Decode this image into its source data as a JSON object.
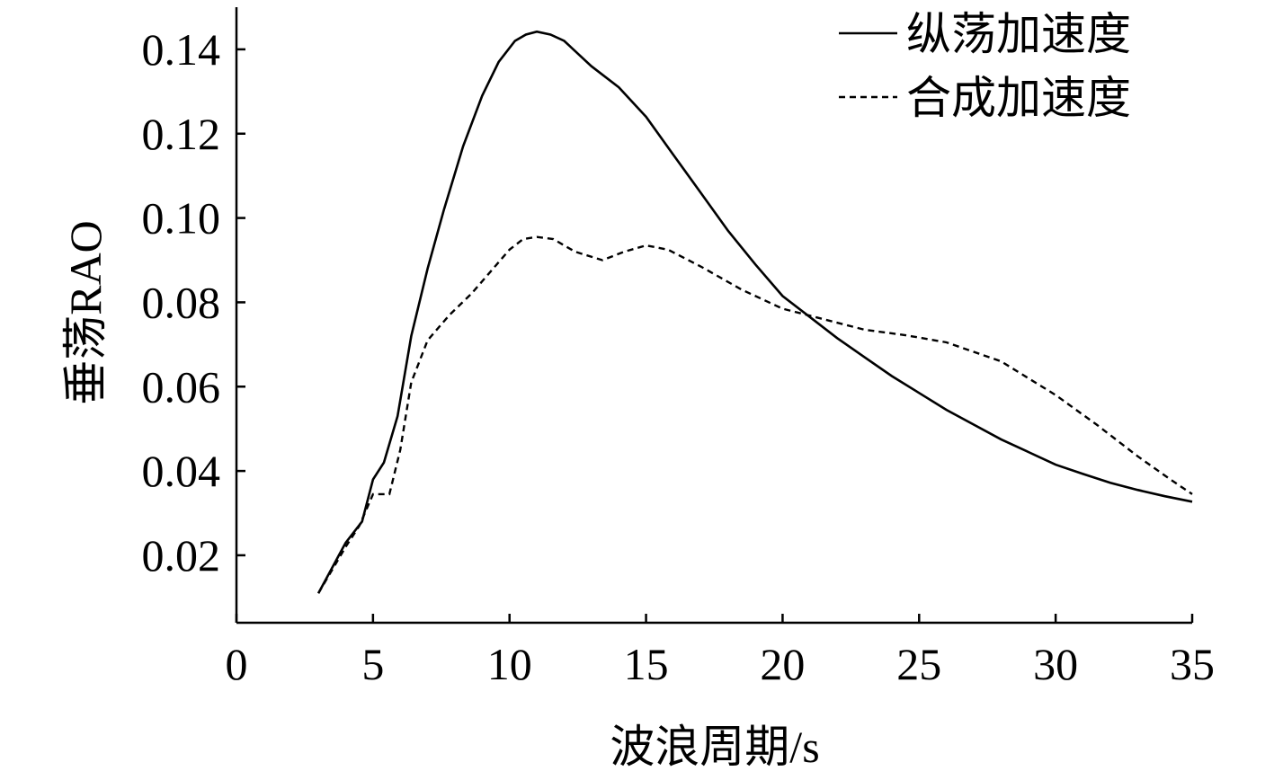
{
  "chart_data": {
    "type": "line",
    "xlabel": "波浪周期/s",
    "ylabel": "垂荡RAO",
    "xlim": [
      0,
      35
    ],
    "ylim": [
      0.004,
      0.15
    ],
    "x_ticks": [
      "0",
      "5",
      "10",
      "15",
      "20",
      "25",
      "30",
      "35"
    ],
    "y_ticks": [
      "0.02",
      "0.04",
      "0.06",
      "0.08",
      "0.10",
      "0.12",
      "0.14"
    ],
    "legend_position": "top-right",
    "series": [
      {
        "name": "纵荡加速度",
        "style": "solid",
        "color": "#000000",
        "points": [
          [
            3.0,
            0.011
          ],
          [
            4.0,
            0.023
          ],
          [
            4.6,
            0.028
          ],
          [
            5.0,
            0.038
          ],
          [
            5.4,
            0.042
          ],
          [
            5.9,
            0.053
          ],
          [
            6.4,
            0.072
          ],
          [
            7.0,
            0.088
          ],
          [
            7.6,
            0.102
          ],
          [
            8.3,
            0.117
          ],
          [
            9.0,
            0.129
          ],
          [
            9.6,
            0.137
          ],
          [
            10.2,
            0.142
          ],
          [
            10.6,
            0.1435
          ],
          [
            11.0,
            0.1442
          ],
          [
            11.5,
            0.1435
          ],
          [
            12.0,
            0.142
          ],
          [
            13.0,
            0.136
          ],
          [
            14.0,
            0.131
          ],
          [
            15.0,
            0.124
          ],
          [
            16.0,
            0.115
          ],
          [
            17.0,
            0.106
          ],
          [
            18.0,
            0.097
          ],
          [
            19.0,
            0.089
          ],
          [
            20.0,
            0.0815
          ],
          [
            21.0,
            0.0765
          ],
          [
            22.0,
            0.0715
          ],
          [
            23.0,
            0.067
          ],
          [
            24.0,
            0.0625
          ],
          [
            25.0,
            0.0585
          ],
          [
            26.0,
            0.0545
          ],
          [
            27.0,
            0.051
          ],
          [
            28.0,
            0.0475
          ],
          [
            29.0,
            0.0445
          ],
          [
            30.0,
            0.0415
          ],
          [
            31.0,
            0.0393
          ],
          [
            32.0,
            0.0372
          ],
          [
            33.0,
            0.0355
          ],
          [
            34.0,
            0.034
          ],
          [
            35.0,
            0.0327
          ]
        ]
      },
      {
        "name": "合成加速度",
        "style": "dashed",
        "color": "#000000",
        "points": [
          [
            3.0,
            0.011
          ],
          [
            4.0,
            0.022
          ],
          [
            4.5,
            0.027
          ],
          [
            5.0,
            0.0345
          ],
          [
            5.3,
            0.0345
          ],
          [
            5.6,
            0.0345
          ],
          [
            6.0,
            0.045
          ],
          [
            6.4,
            0.061
          ],
          [
            7.0,
            0.071
          ],
          [
            7.8,
            0.077
          ],
          [
            8.6,
            0.082
          ],
          [
            9.4,
            0.088
          ],
          [
            10.0,
            0.0925
          ],
          [
            10.5,
            0.095
          ],
          [
            11.0,
            0.0955
          ],
          [
            11.6,
            0.095
          ],
          [
            12.4,
            0.092
          ],
          [
            13.4,
            0.09
          ],
          [
            14.2,
            0.092
          ],
          [
            15.0,
            0.0935
          ],
          [
            15.8,
            0.0925
          ],
          [
            17.0,
            0.0885
          ],
          [
            18.5,
            0.083
          ],
          [
            20.0,
            0.0785
          ],
          [
            21.5,
            0.076
          ],
          [
            23.0,
            0.0735
          ],
          [
            24.5,
            0.0722
          ],
          [
            26.0,
            0.0705
          ],
          [
            28.0,
            0.066
          ],
          [
            30.0,
            0.058
          ],
          [
            31.5,
            0.051
          ],
          [
            33.0,
            0.0435
          ],
          [
            34.2,
            0.038
          ],
          [
            35.0,
            0.0345
          ]
        ]
      }
    ]
  }
}
